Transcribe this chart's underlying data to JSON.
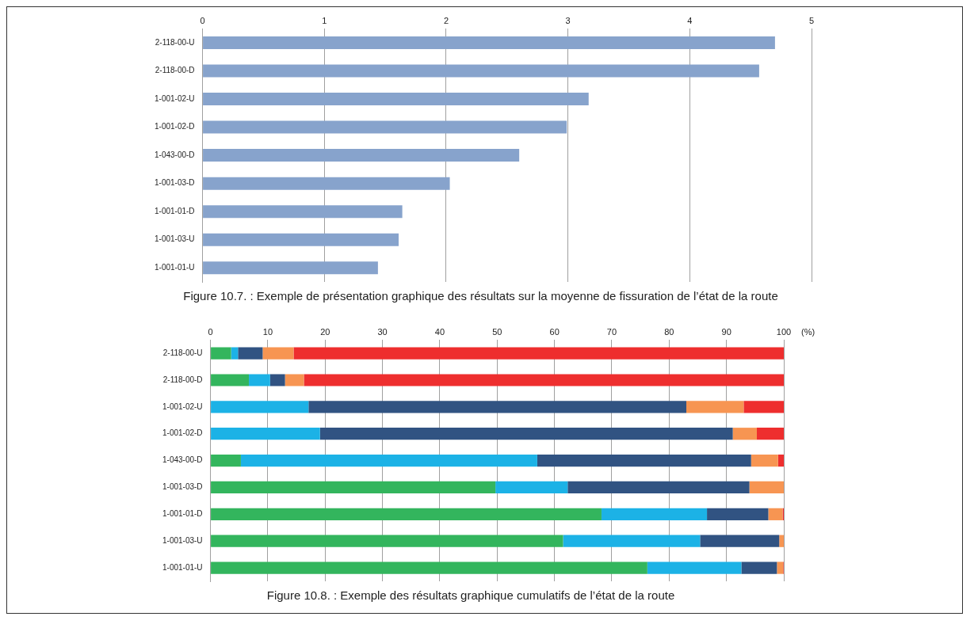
{
  "chart_data": [
    {
      "type": "bar",
      "orientation": "horizontal",
      "title": "Figure 10.7. : Exemple de présentation graphique des résultats sur la moyenne de fissuration de l’état de la route",
      "categories": [
        "2-118-00-U",
        "2-118-00-D",
        "1-001-02-U",
        "1-001-02-D",
        "1-043-00-D",
        "1-001-03-D",
        "1-001-01-D",
        "1-001-03-U",
        "1-001-01-U"
      ],
      "values": [
        4.7,
        4.57,
        3.17,
        2.99,
        2.6,
        2.03,
        1.64,
        1.61,
        1.44
      ],
      "color": "#87a3cc",
      "xlim": [
        0,
        5
      ],
      "xticks": [
        0,
        1,
        2,
        3,
        4,
        5
      ],
      "grid": "x"
    },
    {
      "type": "bar",
      "orientation": "horizontal",
      "stacked": true,
      "title": "Figure 10.8. : Exemple des résultats graphique cumulatifs de l’état de la route",
      "xlabel": "(%)",
      "categories": [
        "2-118-00-U",
        "2-118-00-D",
        "1-001-02-U",
        "1-001-02-D",
        "1-043-00-D",
        "1-001-03-D",
        "1-001-01-D",
        "1-001-03-U",
        "1-001-01-U"
      ],
      "series": [
        {
          "color": "#33b55d",
          "values": [
            3.6,
            6.7,
            0,
            0,
            5.3,
            49.7,
            68.2,
            61.5,
            76.2
          ]
        },
        {
          "color": "#1cb2e6",
          "values": [
            1.2,
            3.7,
            17.1,
            19.1,
            51.7,
            12.6,
            18.4,
            23.9,
            16.4
          ]
        },
        {
          "color": "#315382",
          "values": [
            4.3,
            2.6,
            65.9,
            72,
            37.3,
            31.7,
            10.7,
            13.8,
            6.2
          ]
        },
        {
          "color": "#f79552",
          "values": [
            5.4,
            3.3,
            10,
            4.2,
            4.7,
            6,
            2.5,
            0.8,
            1.1
          ]
        },
        {
          "color": "#ee2e2e",
          "values": [
            85.5,
            83.7,
            7,
            4.7,
            1,
            0,
            0.2,
            0,
            0.1
          ]
        }
      ],
      "xlim": [
        0,
        100
      ],
      "xticks": [
        0,
        10,
        20,
        30,
        40,
        50,
        60,
        70,
        80,
        90,
        100
      ],
      "grid": "x"
    }
  ]
}
